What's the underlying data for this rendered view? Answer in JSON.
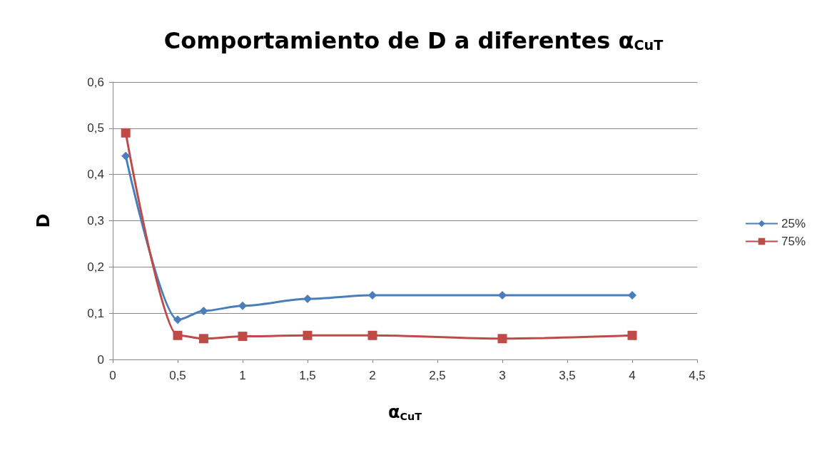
{
  "chart_data": {
    "type": "line",
    "title": "Comportamiento de D a diferentes α$_{CuT}$",
    "xlabel": "α$_{CuT}$",
    "ylabel": "D",
    "x": [
      0.1,
      0.5,
      0.7,
      1,
      1.5,
      2,
      3,
      4
    ],
    "series": [
      {
        "name": "25%",
        "color": "#4a7ebb",
        "marker": "diamond",
        "values": [
          0.44,
          0.086,
          0.105,
          0.116,
          0.131,
          0.139,
          0.139,
          0.139
        ]
      },
      {
        "name": "75%",
        "color": "#be4b48",
        "marker": "square",
        "values": [
          0.49,
          0.052,
          0.045,
          0.05,
          0.052,
          0.052,
          0.045,
          0.052
        ]
      }
    ],
    "xlim": [
      0,
      4.5
    ],
    "xticks": [
      0,
      {
        "value": 0.5,
        "label": "0,5"
      },
      1,
      {
        "value": 1.5,
        "label": "1,5"
      },
      2,
      {
        "value": 2.5,
        "label": "2,5"
      },
      3,
      {
        "value": 3.5,
        "label": "3,5"
      },
      4,
      {
        "value": 4.5,
        "label": "4,5"
      }
    ],
    "ylim": [
      0,
      0.6
    ],
    "yticks": [
      0,
      {
        "value": 0.1,
        "label": "0,1"
      },
      {
        "value": 0.2,
        "label": "0,2"
      },
      {
        "value": 0.3,
        "label": "0,3"
      },
      {
        "value": 0.4,
        "label": "0,4"
      },
      {
        "value": 0.5,
        "label": "0,5"
      },
      {
        "value": 0.6,
        "label": "0,6"
      }
    ],
    "grid": "y",
    "legend": "right",
    "line_style": "solid"
  }
}
